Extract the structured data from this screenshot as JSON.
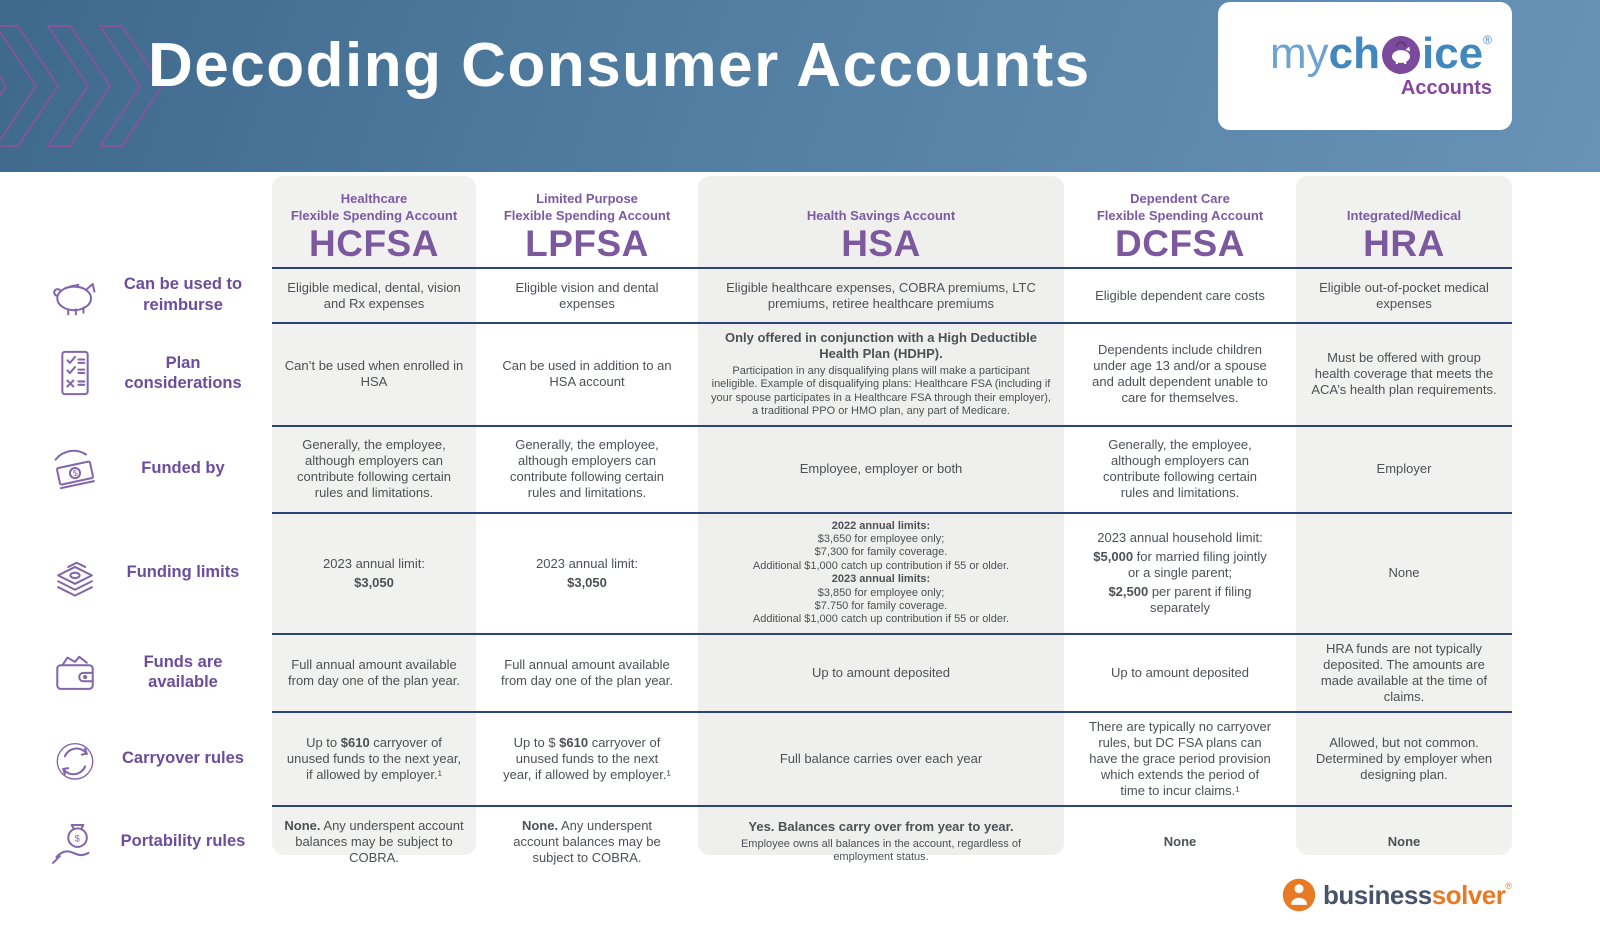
{
  "header": {
    "title": "Decoding Consumer Accounts",
    "logo": {
      "my": "my",
      "ch": "ch",
      "ice": "ice",
      "reg": "®",
      "accounts": "Accounts"
    }
  },
  "row_labels": [
    {
      "icon": "piggy-bank-icon",
      "label": "Can be used to reimburse"
    },
    {
      "icon": "checklist-icon",
      "label": "Plan considerations"
    },
    {
      "icon": "money-bill-icon",
      "label": "Funded by"
    },
    {
      "icon": "cash-stack-icon",
      "label": "Funding limits"
    },
    {
      "icon": "wallet-icon",
      "label": "Funds are available"
    },
    {
      "icon": "carryover-arrows-icon",
      "label": "Carryover rules"
    },
    {
      "icon": "money-bag-hand-icon",
      "label": "Portability rules"
    }
  ],
  "columns": [
    {
      "subtitle": [
        "Healthcare",
        "Flexible Spending Account"
      ],
      "acronym": "HCFSA",
      "shaded": true,
      "cells": [
        [
          {
            "segs": [
              {
                "t": "Eligible medical, dental, vision and Rx expenses"
              }
            ]
          }
        ],
        [
          {
            "segs": [
              {
                "t": "Can’t be used when enrolled in HSA"
              }
            ]
          }
        ],
        [
          {
            "segs": [
              {
                "t": "Generally, the employee, although employers can contribute following certain rules and limitations."
              }
            ]
          }
        ],
        [
          {
            "segs": [
              {
                "t": "2023 annual limit:"
              }
            ]
          },
          {
            "segs": [
              {
                "t": "$3,050",
                "b": true
              }
            ]
          }
        ],
        [
          {
            "segs": [
              {
                "t": "Full annual amount available from day one of the plan year."
              }
            ]
          }
        ],
        [
          {
            "segs": [
              {
                "t": "Up to "
              },
              {
                "t": "$610",
                "b": true
              },
              {
                "t": " carryover of unused funds to the next year, if allowed by employer.¹"
              }
            ]
          }
        ],
        [
          {
            "segs": [
              {
                "t": "None.",
                "b": true
              },
              {
                "t": " Any underspent account balances may be subject to COBRA."
              }
            ]
          }
        ]
      ]
    },
    {
      "subtitle": [
        "Limited Purpose",
        "Flexible Spending Account"
      ],
      "acronym": "LPFSA",
      "shaded": false,
      "cells": [
        [
          {
            "segs": [
              {
                "t": "Eligible vision and dental expenses"
              }
            ]
          }
        ],
        [
          {
            "segs": [
              {
                "t": "Can be used in addition to an HSA account"
              }
            ]
          }
        ],
        [
          {
            "segs": [
              {
                "t": "Generally, the employee, although employers can contribute following certain rules and limitations."
              }
            ]
          }
        ],
        [
          {
            "segs": [
              {
                "t": "2023 annual limit:"
              }
            ]
          },
          {
            "segs": [
              {
                "t": "$3,050",
                "b": true
              }
            ]
          }
        ],
        [
          {
            "segs": [
              {
                "t": "Full annual amount available from day one of the plan year."
              }
            ]
          }
        ],
        [
          {
            "segs": [
              {
                "t": "Up to $ "
              },
              {
                "t": "$610",
                "b": true
              },
              {
                "t": " carryover of unused funds to the next year, if allowed by employer.¹"
              }
            ]
          }
        ],
        [
          {
            "segs": [
              {
                "t": "None.",
                "b": true
              },
              {
                "t": " Any underspent account balances may be subject to COBRA."
              }
            ]
          }
        ]
      ]
    },
    {
      "subtitle": [
        "Health Savings Account"
      ],
      "acronym": "HSA",
      "shaded": true,
      "cells": [
        [
          {
            "segs": [
              {
                "t": "Eligible healthcare expenses, COBRA premiums, LTC premiums, retiree healthcare premiums"
              }
            ]
          }
        ],
        [
          {
            "segs": [
              {
                "t": "Only offered in conjunction with a High Deductible Health Plan (HDHP).",
                "b": true
              }
            ]
          },
          {
            "small": true,
            "segs": [
              {
                "t": "Participation in any disqualifying plans will make a participant ineligible. Example of disqualifying plans: Healthcare FSA (including if your spouse participates in a Healthcare FSA through their employer), a traditional  PPO or HMO plan, any part of Medicare."
              }
            ]
          }
        ],
        [
          {
            "segs": [
              {
                "t": "Employee, employer or both"
              }
            ]
          }
        ],
        [
          {
            "small": true,
            "segs": [
              {
                "t": "2022 annual limits:",
                "b": true
              }
            ]
          },
          {
            "small": true,
            "segs": [
              {
                "t": "$3,650 for employee only;"
              }
            ]
          },
          {
            "small": true,
            "segs": [
              {
                "t": "$7,300 for family coverage."
              }
            ]
          },
          {
            "small": true,
            "segs": [
              {
                "t": "Additional $1,000 catch up contribution if 55 or older."
              }
            ]
          },
          {
            "small": true,
            "segs": [
              {
                "t": "2023 annual limits:",
                "b": true
              }
            ]
          },
          {
            "small": true,
            "segs": [
              {
                "t": "$3,850 for employee only;"
              }
            ]
          },
          {
            "small": true,
            "segs": [
              {
                "t": "$7.750 for family coverage."
              }
            ]
          },
          {
            "small": true,
            "segs": [
              {
                "t": "Additional $1,000 catch up contribution if 55 or older."
              }
            ]
          }
        ],
        [
          {
            "segs": [
              {
                "t": "Up to amount deposited"
              }
            ]
          }
        ],
        [
          {
            "segs": [
              {
                "t": "Full balance carries over each year"
              }
            ]
          }
        ],
        [
          {
            "segs": [
              {
                "t": "Yes. Balances carry over from year to year.",
                "b": true
              }
            ]
          },
          {
            "small": true,
            "segs": [
              {
                "t": "Employee owns all balances in the account, regardless of employment status."
              }
            ]
          }
        ]
      ]
    },
    {
      "subtitle": [
        "Dependent Care",
        "Flexible Spending Account"
      ],
      "acronym": "DCFSA",
      "shaded": false,
      "cells": [
        [
          {
            "segs": [
              {
                "t": "Eligible dependent care costs"
              }
            ]
          }
        ],
        [
          {
            "segs": [
              {
                "t": "Dependents include children under age 13 and/or a spouse and adult dependent unable to care for themselves."
              }
            ]
          }
        ],
        [
          {
            "segs": [
              {
                "t": "Generally, the employee, although employers can contribute following certain rules and limitations."
              }
            ]
          }
        ],
        [
          {
            "segs": [
              {
                "t": "2023 annual household limit:"
              }
            ]
          },
          {
            "segs": [
              {
                "t": "$5,000",
                "b": true
              },
              {
                "t": " for married filing jointly or a single parent;"
              }
            ]
          },
          {
            "segs": [
              {
                "t": "$2,500",
                "b": true
              },
              {
                "t": " per parent if filing separately"
              }
            ]
          }
        ],
        [
          {
            "segs": [
              {
                "t": "Up to amount deposited"
              }
            ]
          }
        ],
        [
          {
            "segs": [
              {
                "t": "There are typically no carryover rules, but DC FSA plans can have the grace period provision which extends the period of time to incur claims.¹"
              }
            ]
          }
        ],
        [
          {
            "segs": [
              {
                "t": "None",
                "b": true
              }
            ]
          }
        ]
      ]
    },
    {
      "subtitle": [
        "Integrated/Medical"
      ],
      "acronym": "HRA",
      "shaded": true,
      "cells": [
        [
          {
            "segs": [
              {
                "t": "Eligible out-of-pocket medical expenses"
              }
            ]
          }
        ],
        [
          {
            "segs": [
              {
                "t": "Must be offered with group health coverage that meets the ACA’s health plan requirements."
              }
            ]
          }
        ],
        [
          {
            "segs": [
              {
                "t": "Employer"
              }
            ]
          }
        ],
        [
          {
            "segs": [
              {
                "t": "None"
              }
            ]
          }
        ],
        [
          {
            "segs": [
              {
                "t": "HRA funds are not typically deposited. The amounts are made available at the time of claims."
              }
            ]
          }
        ],
        [
          {
            "segs": [
              {
                "t": "Allowed, but not common. Determined by employer when designing plan."
              }
            ]
          }
        ],
        [
          {
            "segs": [
              {
                "t": "None",
                "b": true
              }
            ]
          }
        ]
      ]
    }
  ],
  "footer": {
    "business": "business",
    "solver": "solver",
    "reg": "®"
  },
  "colors": {
    "header_blue": "#527ea2",
    "accent_purple": "#7c599f",
    "navy_divider": "#2e4377",
    "cell_text_gray": "#4d5156",
    "shaded_column_gray": "#f1f1ef",
    "brand_blue": "#4088be",
    "brand_purple": "#7b4a9c",
    "brand_orange": "#e87a25"
  }
}
